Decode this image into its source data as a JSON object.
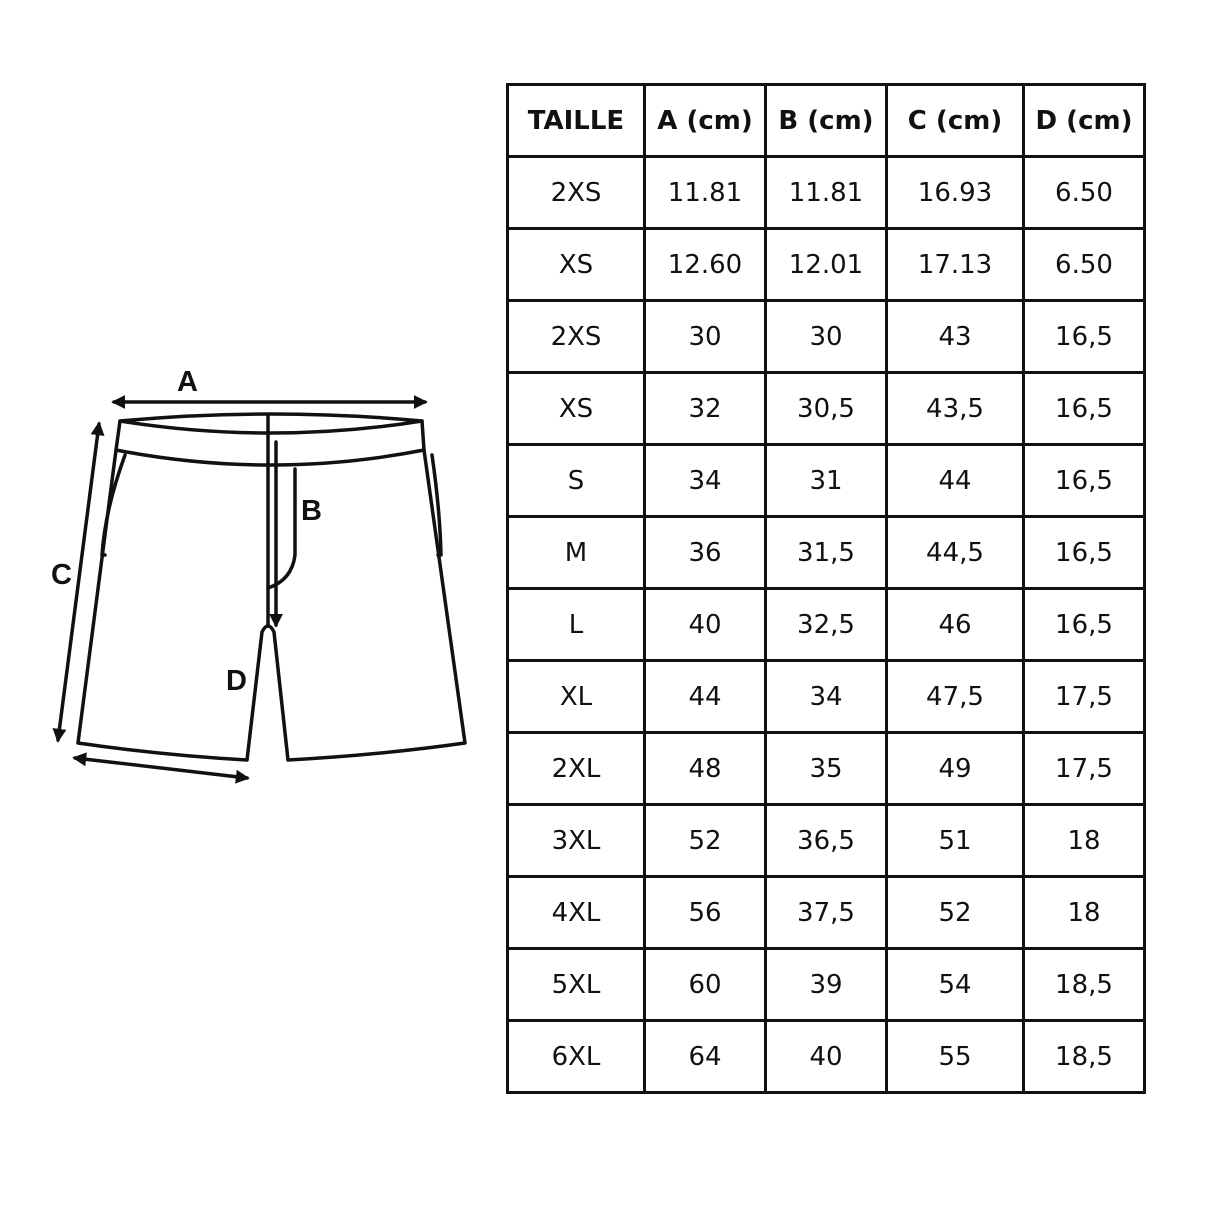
{
  "diagram": {
    "labels": {
      "a": "A",
      "b": "B",
      "c": "C",
      "d": "D"
    }
  },
  "table": {
    "headers": [
      "TAILLE",
      "A (cm)",
      "B (cm)",
      "C (cm)",
      "D (cm)"
    ],
    "rows": [
      [
        "2XS",
        "11.81",
        "11.81",
        "16.93",
        "6.50"
      ],
      [
        "XS",
        "12.60",
        "12.01",
        "17.13",
        "6.50"
      ],
      [
        "2XS",
        "30",
        "30",
        "43",
        "16,5"
      ],
      [
        "XS",
        "32",
        "30,5",
        "43,5",
        "16,5"
      ],
      [
        "S",
        "34",
        "31",
        "44",
        "16,5"
      ],
      [
        "M",
        "36",
        "31,5",
        "44,5",
        "16,5"
      ],
      [
        "L",
        "40",
        "32,5",
        "46",
        "16,5"
      ],
      [
        "XL",
        "44",
        "34",
        "47,5",
        "17,5"
      ],
      [
        "2XL",
        "48",
        "35",
        "49",
        "17,5"
      ],
      [
        "3XL",
        "52",
        "36,5",
        "51",
        "18"
      ],
      [
        "4XL",
        "56",
        "37,5",
        "52",
        "18"
      ],
      [
        "5XL",
        "60",
        "39",
        "54",
        "18,5"
      ],
      [
        "6XL",
        "64",
        "40",
        "55",
        "18,5"
      ]
    ]
  }
}
